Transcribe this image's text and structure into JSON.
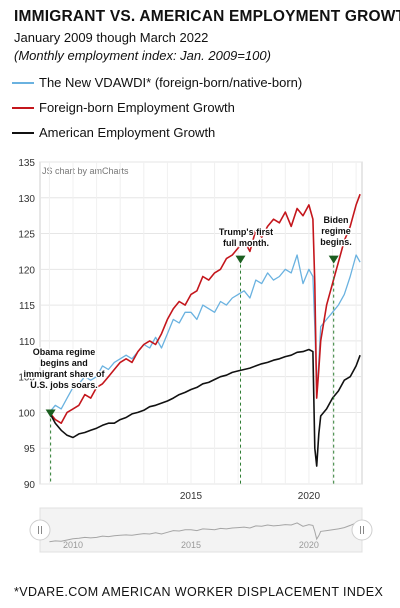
{
  "header": {
    "title": "IMMIGRANT VS. AMERICAN EMPLOYMENT GROWTH",
    "subtitle": "January 2009 though March 2022",
    "note": "(Monthly employment index: Jan. 2009=100)"
  },
  "legend": [
    {
      "label": "The New VDAWDI* (foreign-born/native-born)",
      "color": "#6ab2e0"
    },
    {
      "label": "Foreign-born Employment Growth",
      "color": "#c4161c"
    },
    {
      "label": "American Employment Growth",
      "color": "#111111"
    }
  ],
  "credit": "JS chart by amCharts",
  "footer": "*VDARE.COM AMERICAN WORKER DISPLACEMENT INDEX",
  "chart_data": {
    "type": "line",
    "ylim": [
      90,
      135
    ],
    "xlim": [
      2008.6,
      2022.25
    ],
    "yticks": [
      "90",
      "95",
      "100",
      "105",
      "110",
      "115",
      "120",
      "125",
      "130",
      "135"
    ],
    "xticks": [
      "2015",
      "2020"
    ],
    "navigator_xticks": [
      "2010",
      "2015",
      "2020"
    ],
    "grid": true,
    "legend_position": "top",
    "series": [
      {
        "name": "The New VDAWDI* (foreign-born/native-born)",
        "color": "#6ab2e0",
        "x": [
          2009.0,
          2009.25,
          2009.5,
          2009.75,
          2010.0,
          2010.25,
          2010.5,
          2010.75,
          2011.0,
          2011.25,
          2011.5,
          2011.75,
          2012.0,
          2012.25,
          2012.5,
          2012.75,
          2013.0,
          2013.25,
          2013.5,
          2013.75,
          2014.0,
          2014.25,
          2014.5,
          2014.75,
          2015.0,
          2015.25,
          2015.5,
          2015.75,
          2016.0,
          2016.25,
          2016.5,
          2016.75,
          2017.0,
          2017.25,
          2017.5,
          2017.75,
          2018.0,
          2018.25,
          2018.5,
          2018.75,
          2019.0,
          2019.25,
          2019.5,
          2019.75,
          2020.0,
          2020.17,
          2020.25,
          2020.33,
          2020.42,
          2020.5,
          2020.75,
          2021.0,
          2021.25,
          2021.5,
          2021.75,
          2022.0,
          2022.17
        ],
        "y": [
          100,
          101,
          100.5,
          102,
          103.5,
          104,
          105,
          104.5,
          105,
          106.5,
          106,
          107,
          107.5,
          108,
          107.5,
          108.5,
          109.5,
          109,
          110.5,
          109,
          111,
          113,
          112.5,
          114,
          114,
          113,
          115,
          114.5,
          114,
          115.5,
          115,
          116,
          116.5,
          117,
          116,
          118.5,
          118,
          119.5,
          118.5,
          119,
          120,
          119.5,
          122,
          118,
          120,
          119,
          112,
          103,
          107,
          112,
          113,
          114,
          115,
          116.5,
          119,
          122,
          121
        ]
      },
      {
        "name": "Foreign-born Employment Growth",
        "color": "#c4161c",
        "x": [
          2009.0,
          2009.25,
          2009.5,
          2009.75,
          2010.0,
          2010.25,
          2010.5,
          2010.75,
          2011.0,
          2011.25,
          2011.5,
          2011.75,
          2012.0,
          2012.25,
          2012.5,
          2012.75,
          2013.0,
          2013.25,
          2013.5,
          2013.75,
          2014.0,
          2014.25,
          2014.5,
          2014.75,
          2015.0,
          2015.25,
          2015.5,
          2015.75,
          2016.0,
          2016.25,
          2016.5,
          2016.75,
          2017.0,
          2017.25,
          2017.5,
          2017.75,
          2018.0,
          2018.25,
          2018.5,
          2018.75,
          2019.0,
          2019.25,
          2019.5,
          2019.75,
          2020.0,
          2020.17,
          2020.25,
          2020.33,
          2020.42,
          2020.5,
          2020.75,
          2021.0,
          2021.25,
          2021.5,
          2021.75,
          2022.0,
          2022.17
        ],
        "y": [
          100,
          99,
          98.5,
          100,
          100.5,
          101,
          102.5,
          102,
          103.5,
          104,
          105,
          106,
          107,
          107.5,
          107,
          108.5,
          109.5,
          110,
          109.5,
          111,
          113,
          114.5,
          115.5,
          115,
          116.5,
          117,
          119,
          118.5,
          119.5,
          120,
          121.5,
          122,
          123,
          124,
          122.5,
          125.5,
          124.5,
          126,
          127,
          126.5,
          128,
          126,
          128.5,
          127.5,
          129,
          127,
          118,
          102,
          106,
          110,
          115,
          118,
          121,
          124,
          126,
          129,
          130.5
        ]
      },
      {
        "name": "American Employment Growth",
        "color": "#111111",
        "x": [
          2009.0,
          2009.25,
          2009.5,
          2009.75,
          2010.0,
          2010.25,
          2010.5,
          2010.75,
          2011.0,
          2011.25,
          2011.5,
          2011.75,
          2012.0,
          2012.25,
          2012.5,
          2012.75,
          2013.0,
          2013.25,
          2013.5,
          2013.75,
          2014.0,
          2014.25,
          2014.5,
          2014.75,
          2015.0,
          2015.25,
          2015.5,
          2015.75,
          2016.0,
          2016.25,
          2016.5,
          2016.75,
          2017.0,
          2017.25,
          2017.5,
          2017.75,
          2018.0,
          2018.25,
          2018.5,
          2018.75,
          2019.0,
          2019.25,
          2019.5,
          2019.75,
          2020.0,
          2020.17,
          2020.25,
          2020.33,
          2020.42,
          2020.5,
          2020.75,
          2021.0,
          2021.25,
          2021.5,
          2021.75,
          2022.0,
          2022.17
        ],
        "y": [
          100,
          98.5,
          97.5,
          96.8,
          96.5,
          97,
          97.2,
          97.5,
          97.8,
          98.2,
          98.5,
          98.5,
          99,
          99.3,
          99.8,
          100,
          100.3,
          100.8,
          101,
          101.3,
          101.6,
          102,
          102.5,
          102.8,
          103.2,
          103.5,
          104,
          104.2,
          104.6,
          105,
          105.2,
          105.6,
          105.8,
          106,
          106.2,
          106.5,
          106.8,
          107,
          107.3,
          107.5,
          107.8,
          108,
          108.4,
          108.5,
          108.8,
          108.5,
          95,
          92.5,
          97,
          99.5,
          100.5,
          102,
          103,
          104.5,
          105,
          106.5,
          108
        ]
      }
    ],
    "annotations": [
      {
        "text": [
          "Obama regime",
          "begins and",
          "immigrant share of",
          "U.S. jobs soars."
        ],
        "x": 2009.05,
        "y": 100
      },
      {
        "text": [
          "Trump's first",
          "full month."
        ],
        "x": 2017.1,
        "y": 121.5
      },
      {
        "text": [
          "Biden",
          "regime",
          "begins."
        ],
        "x": 2021.05,
        "y": 121.5
      }
    ]
  }
}
